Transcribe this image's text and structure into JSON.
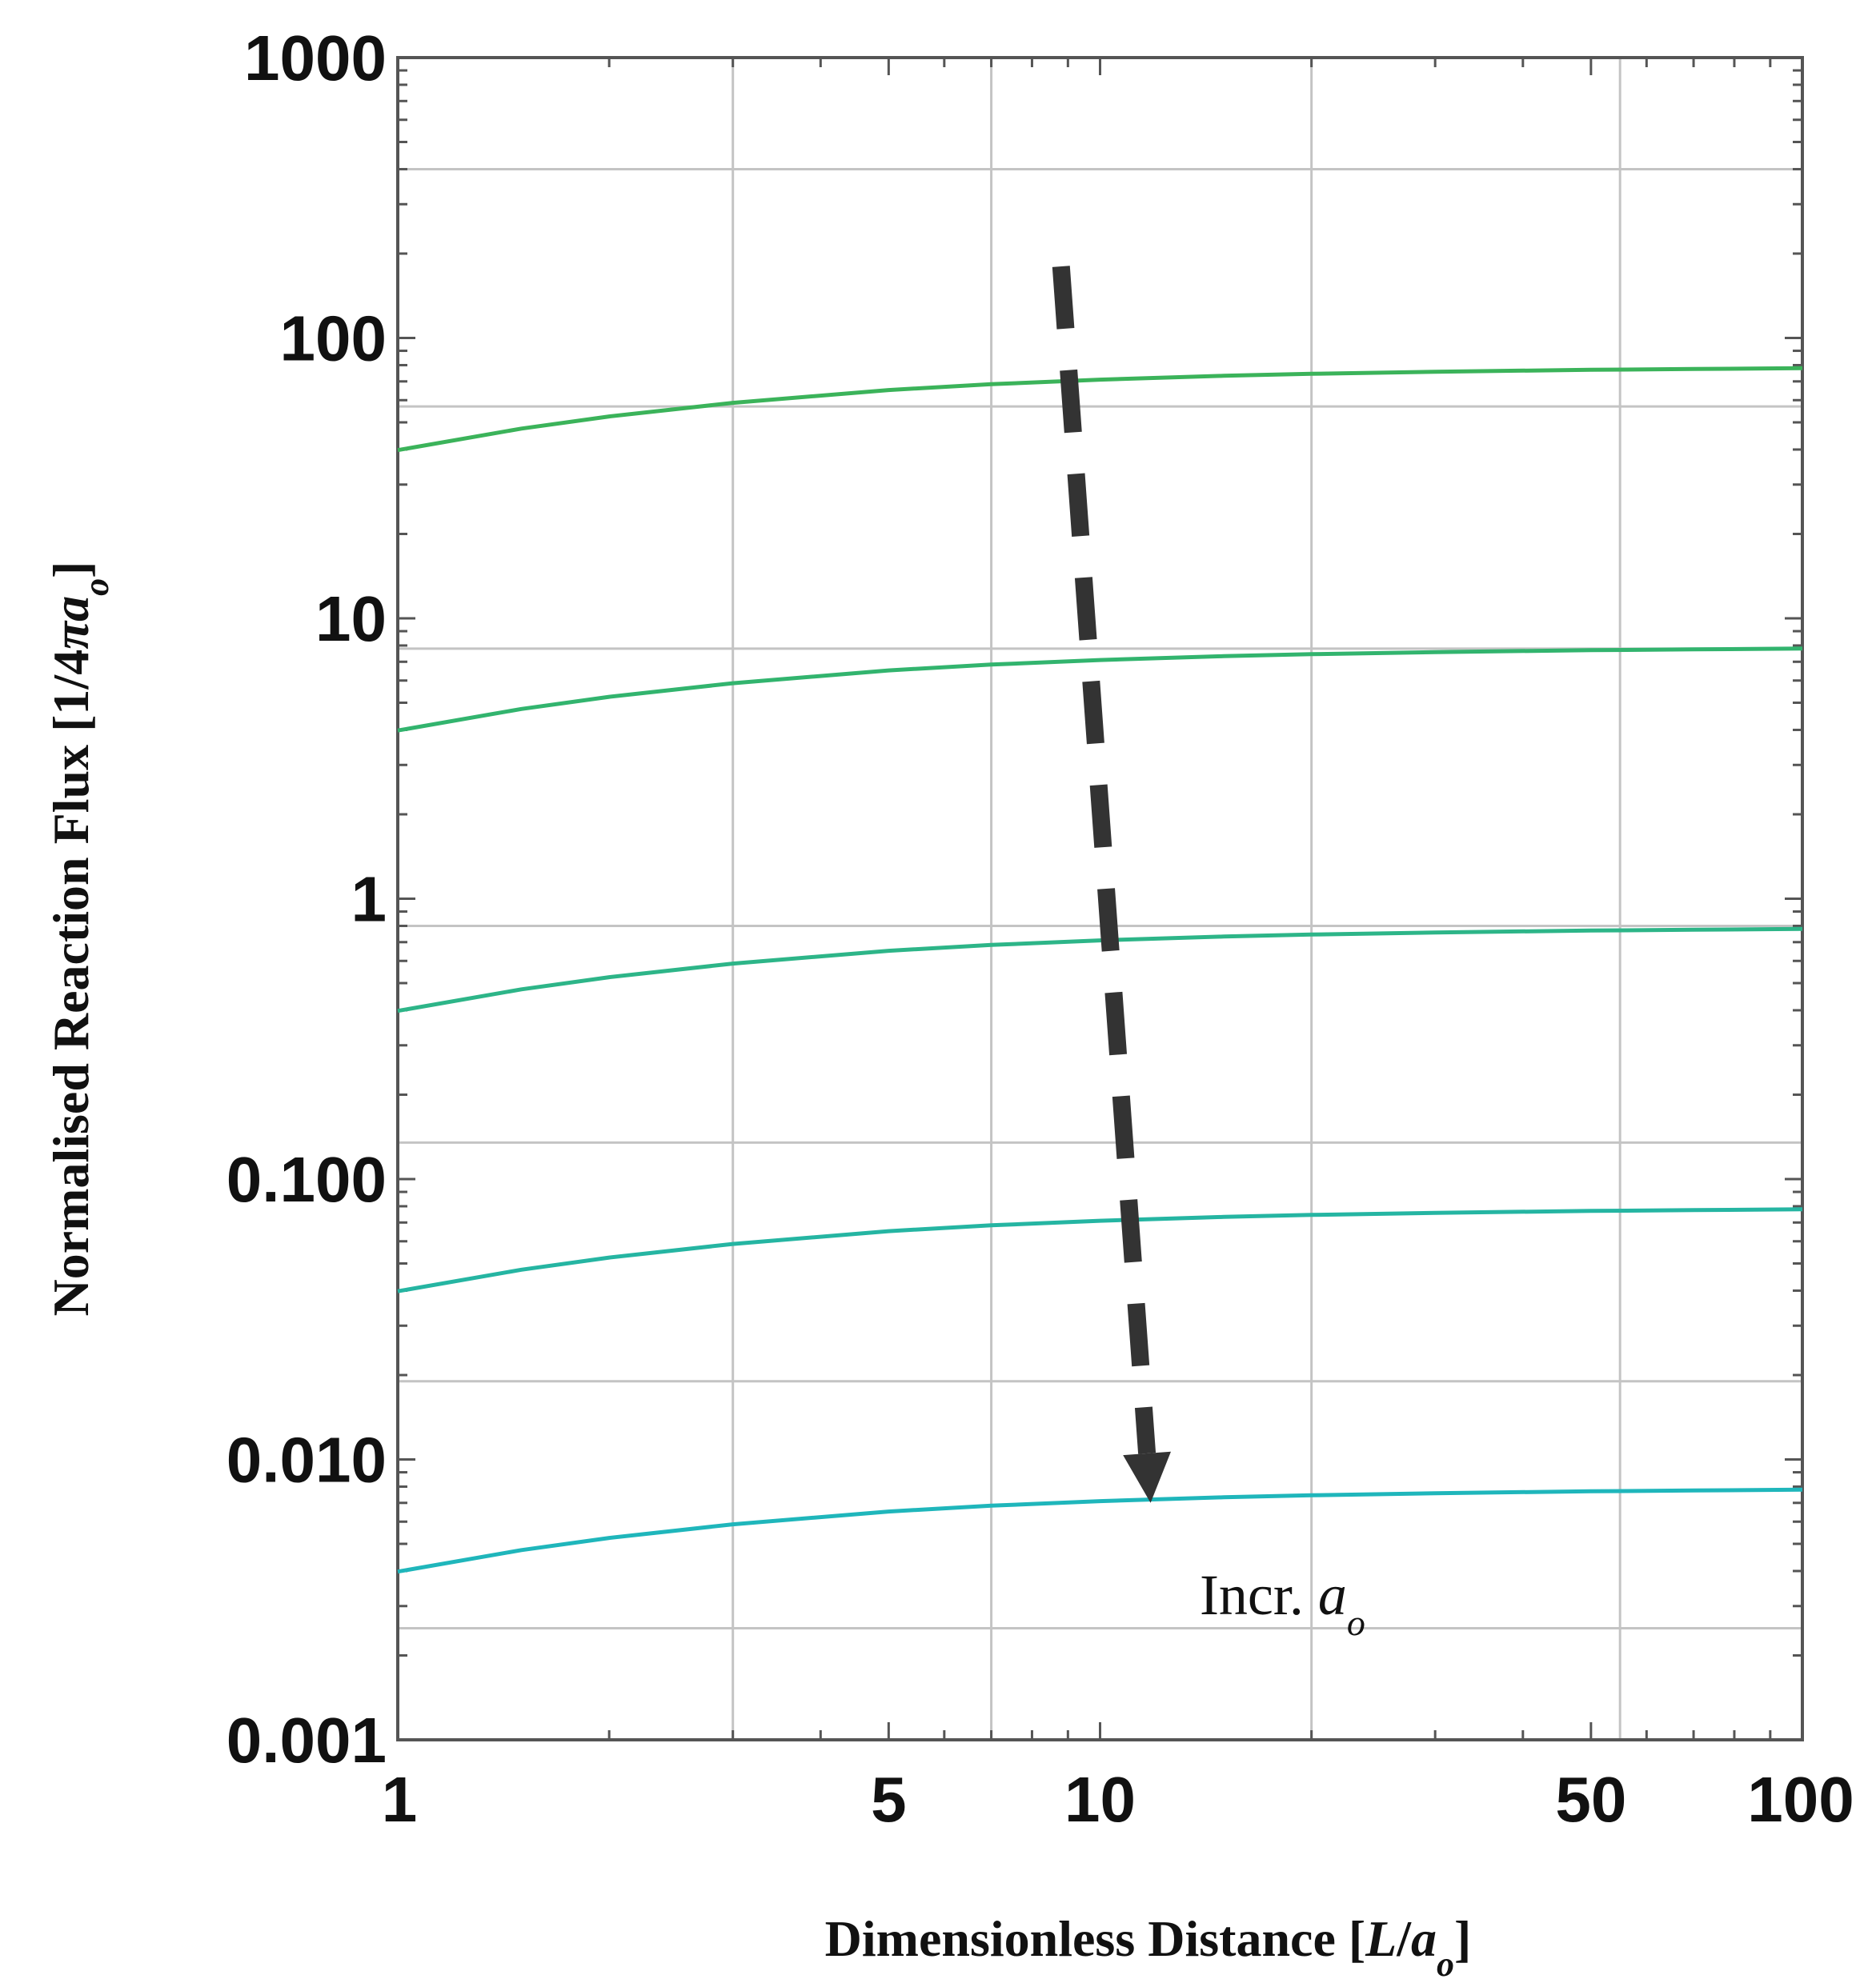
{
  "chart_data": {
    "type": "line",
    "xscale": "log",
    "yscale": "log",
    "xlim": [
      1,
      100
    ],
    "ylim": [
      0.001,
      1000
    ],
    "grid": true,
    "xticks": [
      1,
      5,
      10,
      50,
      100
    ],
    "xtick_labels": [
      "1",
      "5",
      "10",
      "50",
      "100"
    ],
    "x_gridlines": [
      3,
      7,
      20,
      55
    ],
    "yticks": [
      0.001,
      0.01,
      0.1,
      1,
      10,
      100,
      1000
    ],
    "ytick_labels": [
      "0.001",
      "0.010",
      "0.100",
      "1",
      "10",
      "100",
      "1000"
    ],
    "y_gridlines": [
      0.0025,
      0.019,
      0.135,
      0.8,
      7.8,
      57,
      400
    ],
    "xlabel": "Dimensionless Distance [L/aₒ]",
    "xlabel_parts": {
      "prefix": "Dimensionless Distance [",
      "var1": "L",
      "slash": "/",
      "var2": "a",
      "sub": "o",
      "suffix": "]"
    },
    "ylabel": "Normalised Reaction Flux [1/4πaₒ]",
    "ylabel_parts": {
      "prefix": "Normalised Reaction Flux [1/4",
      "pi": "π",
      "var": "a",
      "sub": "o",
      "suffix": "]"
    },
    "x": [
      1,
      1.5,
      2,
      3,
      5,
      7,
      10,
      15,
      20,
      30,
      50,
      70,
      100
    ],
    "series": [
      {
        "name": "curve-1",
        "color": "#3bb35a",
        "values": [
          39.8,
          47.5,
          52.5,
          58.7,
          65.2,
          68.4,
          71.0,
          73.3,
          74.5,
          75.8,
          77.0,
          77.5,
          78.0
        ]
      },
      {
        "name": "curve-2",
        "color": "#32b46e",
        "values": [
          3.98,
          4.75,
          5.25,
          5.87,
          6.52,
          6.84,
          7.1,
          7.33,
          7.45,
          7.58,
          7.7,
          7.75,
          7.8
        ]
      },
      {
        "name": "curve-3",
        "color": "#2db588",
        "values": [
          0.398,
          0.475,
          0.525,
          0.587,
          0.652,
          0.684,
          0.71,
          0.733,
          0.745,
          0.758,
          0.77,
          0.775,
          0.78
        ]
      },
      {
        "name": "curve-4",
        "color": "#25b5a2",
        "values": [
          0.0398,
          0.0475,
          0.0525,
          0.0587,
          0.0652,
          0.0684,
          0.071,
          0.0733,
          0.0745,
          0.0758,
          0.077,
          0.0775,
          0.078
        ]
      },
      {
        "name": "curve-5",
        "color": "#1fb6bb",
        "values": [
          0.00398,
          0.00475,
          0.00525,
          0.00587,
          0.00652,
          0.00684,
          0.0071,
          0.00733,
          0.00745,
          0.00758,
          0.0077,
          0.00775,
          0.0078
        ]
      }
    ],
    "annotations": [
      {
        "name": "increase-arrow",
        "style": "dashed",
        "color": "#333333",
        "from": [
          8.8,
          180
        ],
        "to": [
          11.8,
          0.007
        ]
      },
      {
        "name": "increase-label",
        "text": "Incr.",
        "italic_var": "a",
        "sub": "o",
        "at": [
          18.5,
          0.0032
        ]
      }
    ]
  }
}
